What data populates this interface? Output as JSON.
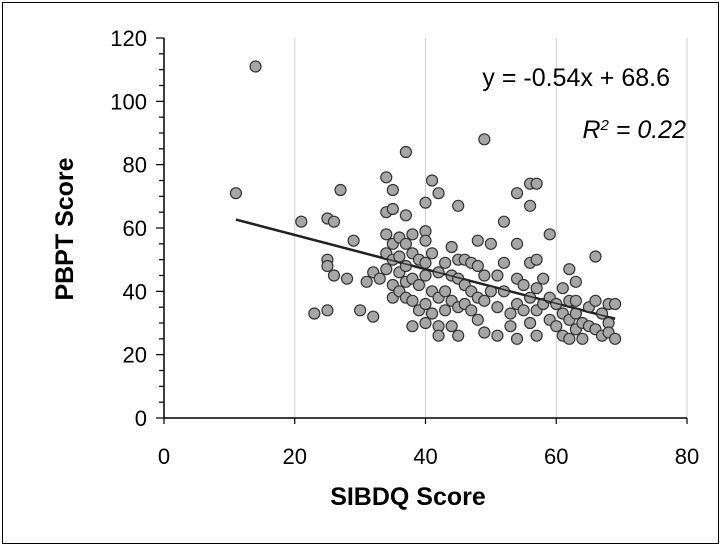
{
  "chart_data": {
    "type": "scatter",
    "xlabel": "SIBDQ Score",
    "ylabel": "PBPT Score",
    "xlim": [
      0,
      80
    ],
    "ylim": [
      0,
      120
    ],
    "x_ticks": [
      "0",
      "20",
      "40",
      "60",
      "80"
    ],
    "y_ticks": [
      "0",
      "20",
      "40",
      "60",
      "80",
      "100",
      "120"
    ],
    "grid": "vertical",
    "equation": "y = -0.54x + 68.6",
    "r2_label": "R",
    "r2_sup": "2",
    "r2_value": " = 0.22",
    "trendline": {
      "slope": -0.54,
      "intercept": 68.6,
      "x_range": [
        11,
        69
      ]
    },
    "colors": {
      "marker_fill": "#a6a6a6",
      "marker_stroke": "#333333",
      "trendline": "#222222",
      "grid": "#d0d0d0"
    },
    "points": [
      [
        11,
        71
      ],
      [
        14,
        111
      ],
      [
        21,
        62
      ],
      [
        23,
        33
      ],
      [
        25,
        63
      ],
      [
        25,
        50
      ],
      [
        25,
        48
      ],
      [
        25,
        34
      ],
      [
        26,
        62
      ],
      [
        26,
        45
      ],
      [
        27,
        72
      ],
      [
        28,
        44
      ],
      [
        29,
        56
      ],
      [
        30,
        34
      ],
      [
        31,
        43
      ],
      [
        32,
        46
      ],
      [
        32,
        32
      ],
      [
        33,
        44
      ],
      [
        34,
        76
      ],
      [
        34,
        65
      ],
      [
        34,
        58
      ],
      [
        34,
        52
      ],
      [
        34,
        47
      ],
      [
        35,
        72
      ],
      [
        35,
        66
      ],
      [
        35,
        55
      ],
      [
        35,
        50
      ],
      [
        35,
        42
      ],
      [
        35,
        38
      ],
      [
        36,
        57
      ],
      [
        36,
        51
      ],
      [
        36,
        46
      ],
      [
        36,
        40
      ],
      [
        37,
        84
      ],
      [
        37,
        64
      ],
      [
        37,
        55
      ],
      [
        37,
        48
      ],
      [
        37,
        43
      ],
      [
        37,
        38
      ],
      [
        38,
        58
      ],
      [
        38,
        52
      ],
      [
        38,
        44
      ],
      [
        38,
        37
      ],
      [
        38,
        29
      ],
      [
        39,
        50
      ],
      [
        39,
        42
      ],
      [
        39,
        34
      ],
      [
        40,
        68
      ],
      [
        40,
        59
      ],
      [
        40,
        56
      ],
      [
        40,
        49
      ],
      [
        40,
        45
      ],
      [
        40,
        36
      ],
      [
        40,
        30
      ],
      [
        41,
        75
      ],
      [
        41,
        52
      ],
      [
        41,
        40
      ],
      [
        41,
        33
      ],
      [
        42,
        71
      ],
      [
        42,
        46
      ],
      [
        42,
        38
      ],
      [
        42,
        29
      ],
      [
        42,
        26
      ],
      [
        43,
        49
      ],
      [
        43,
        40
      ],
      [
        43,
        34
      ],
      [
        44,
        54
      ],
      [
        44,
        45
      ],
      [
        44,
        37
      ],
      [
        44,
        29
      ],
      [
        45,
        67
      ],
      [
        45,
        50
      ],
      [
        45,
        44
      ],
      [
        45,
        35
      ],
      [
        45,
        26
      ],
      [
        46,
        50
      ],
      [
        46,
        42
      ],
      [
        46,
        36
      ],
      [
        47,
        49
      ],
      [
        47,
        40
      ],
      [
        47,
        34
      ],
      [
        48,
        56
      ],
      [
        48,
        48
      ],
      [
        48,
        38
      ],
      [
        48,
        31
      ],
      [
        49,
        88
      ],
      [
        49,
        45
      ],
      [
        49,
        37
      ],
      [
        49,
        27
      ],
      [
        50,
        55
      ],
      [
        50,
        40
      ],
      [
        51,
        45
      ],
      [
        51,
        35
      ],
      [
        51,
        26
      ],
      [
        52,
        62
      ],
      [
        52,
        49
      ],
      [
        52,
        40
      ],
      [
        53,
        33
      ],
      [
        53,
        29
      ],
      [
        54,
        71
      ],
      [
        54,
        55
      ],
      [
        54,
        44
      ],
      [
        54,
        36
      ],
      [
        54,
        25
      ],
      [
        55,
        42
      ],
      [
        55,
        34
      ],
      [
        56,
        74
      ],
      [
        56,
        67
      ],
      [
        56,
        49
      ],
      [
        56,
        38
      ],
      [
        56,
        30
      ],
      [
        57,
        74
      ],
      [
        57,
        50
      ],
      [
        57,
        41
      ],
      [
        57,
        34
      ],
      [
        57,
        26
      ],
      [
        58,
        44
      ],
      [
        58,
        36
      ],
      [
        59,
        58
      ],
      [
        59,
        38
      ],
      [
        59,
        31
      ],
      [
        60,
        36
      ],
      [
        60,
        29
      ],
      [
        61,
        41
      ],
      [
        61,
        33
      ],
      [
        61,
        26
      ],
      [
        62,
        47
      ],
      [
        62,
        37
      ],
      [
        62,
        31
      ],
      [
        62,
        25
      ],
      [
        63,
        43
      ],
      [
        63,
        37
      ],
      [
        63,
        33
      ],
      [
        63,
        28
      ],
      [
        64,
        30
      ],
      [
        64,
        25
      ],
      [
        65,
        35
      ],
      [
        65,
        29
      ],
      [
        66,
        51
      ],
      [
        66,
        37
      ],
      [
        66,
        28
      ],
      [
        67,
        33
      ],
      [
        67,
        26
      ],
      [
        68,
        36
      ],
      [
        68,
        30
      ],
      [
        68,
        27
      ],
      [
        69,
        36
      ],
      [
        69,
        25
      ]
    ]
  }
}
